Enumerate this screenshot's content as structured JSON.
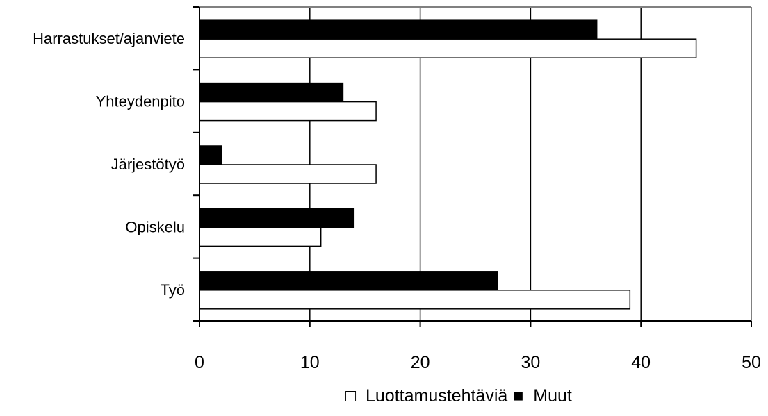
{
  "chart_data": {
    "type": "bar",
    "orientation": "horizontal",
    "title": "",
    "xlabel": "",
    "ylabel": "",
    "categories": [
      "Harrastukset/ajanviete",
      "Yhteydenpito",
      "Järjestötyö",
      "Opiskelu",
      "Työ"
    ],
    "series": [
      {
        "name": "Luottamustehtäviä",
        "color": "#ffffff",
        "values": [
          45,
          16,
          16,
          11,
          39
        ]
      },
      {
        "name": "Muut",
        "color": "#000000",
        "values": [
          36,
          13,
          2,
          14,
          27
        ]
      }
    ],
    "xlim": [
      0,
      50
    ],
    "xticks": [
      0,
      10,
      20,
      30,
      40,
      50
    ],
    "grid": "vertical",
    "legend_position": "bottom",
    "legend": [
      {
        "name": "Luottamustehtäviä",
        "marker": "□"
      },
      {
        "name": "Muut",
        "marker": "■"
      }
    ]
  }
}
